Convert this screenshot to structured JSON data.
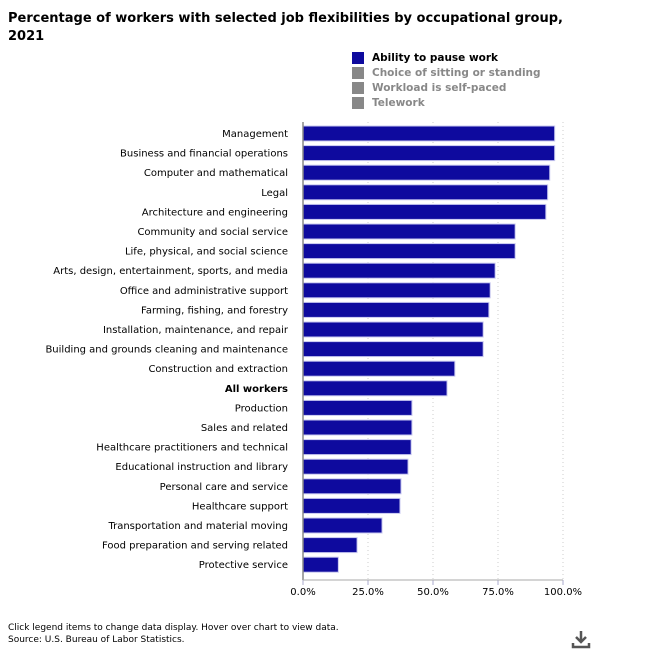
{
  "chart_data": {
    "type": "bar",
    "orientation": "horizontal",
    "title": "Percentage of workers with selected job flexibilities by occupational group, 2021",
    "categories": [
      "Management",
      "Business and financial operations",
      "Computer and mathematical",
      "Legal",
      "Architecture and engineering",
      "Community and social service",
      "Life, physical, and social science",
      "Arts, design, entertainment, sports, and media",
      "Office and administrative support",
      "Farming, fishing, and forestry",
      "Installation, maintenance, and repair",
      "Building and grounds cleaning and maintenance",
      "Construction and extraction",
      "All workers",
      "Production",
      "Sales and related",
      "Healthcare practitioners and technical",
      "Educational instruction and library",
      "Personal care and service",
      "Healthcare support",
      "Transportation and material moving",
      "Food preparation and serving related",
      "Protective service"
    ],
    "bold_category": "All workers",
    "series": [
      {
        "name": "Ability to pause work",
        "values": [
          96.8,
          96.8,
          94.9,
          94.1,
          93.4,
          81.6,
          81.6,
          73.9,
          72.0,
          71.5,
          69.3,
          69.3,
          58.4,
          55.4,
          41.9,
          41.9,
          41.6,
          40.4,
          37.7,
          37.3,
          30.4,
          20.8,
          13.6
        ],
        "color": "#0e0a9e"
      }
    ],
    "xlim": [
      0,
      100
    ],
    "xticks": [
      "0.0%",
      "25.0%",
      "50.0%",
      "75.0%",
      "100.0%"
    ],
    "grid": true,
    "legend": {
      "placement": "top-right",
      "items": [
        {
          "label": "Ability to pause work",
          "active": true,
          "color": "#0e0a9e"
        },
        {
          "label": "Choice of sitting or standing",
          "active": false,
          "color": "#888888"
        },
        {
          "label": "Workload is self-paced",
          "active": false,
          "color": "#888888"
        },
        {
          "label": "Telework",
          "active": false,
          "color": "#888888"
        }
      ]
    }
  },
  "footer": {
    "line1": "Click legend items to change data display. Hover over chart to view data.",
    "line2": "Source: U.S. Bureau of Labor Statistics."
  },
  "icons": {
    "download": "download-icon"
  }
}
